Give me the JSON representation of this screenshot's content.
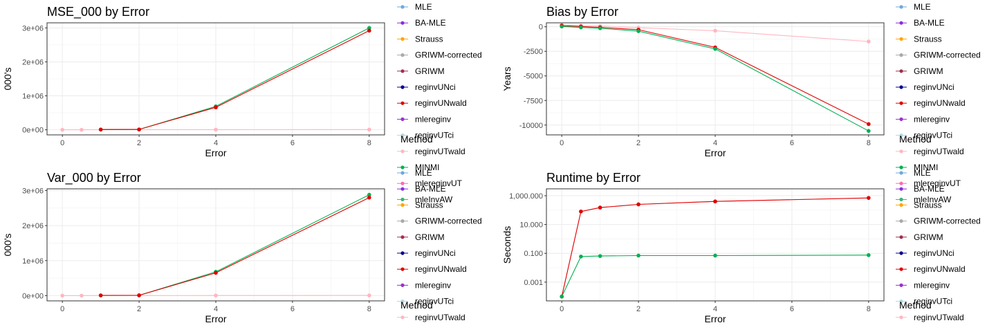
{
  "methods": [
    "MLE",
    "BA-MLE",
    "Strauss",
    "GRIWM-corrected",
    "GRIWM",
    "reginvUNci",
    "reginvUNwald",
    "mlereginv",
    "reginvUTci",
    "reginvUTwald",
    "MINMI",
    "mlereginvUT",
    "mleInvAW"
  ],
  "colors": {
    "MLE": "#6fa8dc",
    "BA-MLE": "#8a2be2",
    "Strauss": "#ffa500",
    "GRIWM-corrected": "#a9a9a9",
    "GRIWM": "#9e3050",
    "reginvUNci": "#00008b",
    "reginvUNwald": "#e00000",
    "mlereginv": "#9932cc",
    "reginvUTci": "#add8e6",
    "reginvUTwald": "#ffb6c1",
    "MINMI": "#00b050",
    "mlereginvUT": "#ff69b4",
    "mleInvAW": "#3cb371"
  },
  "legend_title": "Method",
  "chart_data": [
    {
      "type": "line",
      "title": "MSE_000 by Error",
      "xlabel": "Error",
      "ylabel": "000's",
      "xlim": [
        -0.4,
        8.4
      ],
      "ylim": [
        -150000,
        3150000
      ],
      "xticks": [
        0,
        2,
        4,
        6,
        8
      ],
      "xtick_labels": [
        "0",
        "2",
        "4",
        "6",
        "8"
      ],
      "yticks": [
        0,
        1000000,
        2000000,
        3000000
      ],
      "ytick_labels": [
        "0e+00",
        "1e+06",
        "2e+06",
        "3e+06"
      ],
      "grid": true,
      "series": [
        {
          "name": "reginvUTwald",
          "x": [
            0,
            0.5,
            1,
            2,
            4,
            8
          ],
          "y": [
            0,
            0,
            5000,
            3000,
            5000,
            6000
          ]
        },
        {
          "name": "MINMI",
          "x": [
            1,
            2,
            4,
            8
          ],
          "y": [
            5000,
            8000,
            690000,
            3000000
          ]
        },
        {
          "name": "reginvUNwald",
          "x": [
            1,
            2,
            4,
            8
          ],
          "y": [
            8000,
            10000,
            660000,
            2920000
          ]
        }
      ]
    },
    {
      "type": "line",
      "title": "Bias by Error",
      "xlabel": "Error",
      "ylabel": "Years",
      "xlim": [
        -0.4,
        8.4
      ],
      "ylim": [
        -11000,
        400
      ],
      "xticks": [
        0,
        2,
        4,
        6,
        8
      ],
      "xtick_labels": [
        "0",
        "2",
        "4",
        "6",
        "8"
      ],
      "yticks": [
        0,
        -2500,
        -5000,
        -7500,
        -10000
      ],
      "ytick_labels": [
        "0",
        "-2500",
        "-5000",
        "-7500",
        "-10000"
      ],
      "grid": true,
      "series": [
        {
          "name": "reginvUTwald",
          "x": [
            0,
            0.5,
            1,
            2,
            4,
            8
          ],
          "y": [
            180,
            120,
            80,
            -100,
            -400,
            -1500
          ]
        },
        {
          "name": "reginvUNwald",
          "x": [
            0,
            0.5,
            1,
            2,
            4,
            8
          ],
          "y": [
            120,
            30,
            -60,
            -300,
            -2100,
            -9900
          ]
        },
        {
          "name": "MINMI",
          "x": [
            0,
            0.5,
            1,
            2,
            4,
            8
          ],
          "y": [
            30,
            -70,
            -150,
            -450,
            -2250,
            -10600
          ]
        }
      ]
    },
    {
      "type": "line",
      "title": "Var_000 by Error",
      "xlabel": "Error",
      "ylabel": "000's",
      "xlim": [
        -0.4,
        8.4
      ],
      "ylim": [
        -150000,
        3050000
      ],
      "xticks": [
        0,
        2,
        4,
        6,
        8
      ],
      "xtick_labels": [
        "0",
        "2",
        "4",
        "6",
        "8"
      ],
      "yticks": [
        0,
        1000000,
        2000000,
        3000000
      ],
      "ytick_labels": [
        "0e+00",
        "1e+06",
        "2e+06",
        "3e+06"
      ],
      "grid": true,
      "series": [
        {
          "name": "reginvUTwald",
          "x": [
            0,
            0.5,
            1,
            2,
            4,
            8
          ],
          "y": [
            0,
            0,
            5000,
            3000,
            5000,
            6000
          ]
        },
        {
          "name": "MINMI",
          "x": [
            1,
            2,
            4,
            8
          ],
          "y": [
            5000,
            8000,
            680000,
            2880000
          ]
        },
        {
          "name": "reginvUNwald",
          "x": [
            1,
            2,
            4,
            8
          ],
          "y": [
            8000,
            10000,
            650000,
            2800000
          ]
        }
      ]
    },
    {
      "type": "line",
      "title": "Runtime by Error",
      "xlabel": "Error",
      "ylabel": "Seconds",
      "log_y": true,
      "xlim": [
        -0.4,
        8.4
      ],
      "ylim": [
        5e-05,
        3000
      ],
      "xticks": [
        0,
        2,
        4,
        6,
        8
      ],
      "xtick_labels": [
        "0",
        "2",
        "4",
        "6",
        "8"
      ],
      "yticks": [
        0.001,
        0.1,
        10,
        1000
      ],
      "ytick_labels": [
        "0.001",
        "0.100",
        "10.000",
        "1,000.000"
      ],
      "grid": true,
      "series": [
        {
          "name": "reginvUTwald",
          "x": [
            0,
            0.5,
            1,
            2,
            4,
            8
          ],
          "y": [
            0.0001,
            80,
            150,
            250,
            400,
            700
          ]
        },
        {
          "name": "reginvUNwald",
          "x": [
            0,
            0.5,
            1,
            2,
            4,
            8
          ],
          "y": [
            0.0001,
            80,
            150,
            250,
            400,
            700
          ]
        },
        {
          "name": "MINMI",
          "x": [
            0,
            0.5,
            1,
            2,
            4,
            8
          ],
          "y": [
            0.0001,
            0.06,
            0.065,
            0.07,
            0.07,
            0.075
          ]
        }
      ]
    }
  ]
}
